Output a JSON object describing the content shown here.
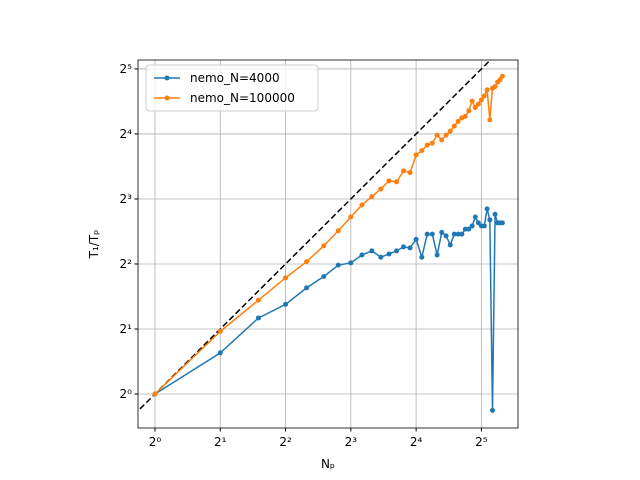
{
  "chart_data": {
    "type": "line",
    "xlabel": "Nₚ",
    "ylabel": "T₁/Tₚ",
    "x": [
      1,
      2,
      3,
      4,
      5,
      6,
      7,
      8,
      9,
      10,
      11,
      12,
      13,
      14,
      15,
      16,
      17,
      18,
      19,
      20,
      21,
      22,
      23,
      24,
      25,
      26,
      27,
      28,
      29,
      30,
      31,
      32,
      33,
      34,
      35,
      36,
      37,
      38,
      39,
      40
    ],
    "series": [
      {
        "name": "nemo_N=4000",
        "color": "#1f77b4",
        "values": [
          1,
          1.55,
          2.25,
          2.6,
          3.1,
          3.5,
          3.95,
          4.05,
          4.4,
          4.6,
          4.3,
          4.45,
          4.6,
          4.8,
          4.75,
          5.2,
          4.3,
          5.5,
          5.5,
          4.4,
          5.6,
          5.4,
          4.9,
          5.5,
          5.5,
          5.5,
          5.8,
          5.8,
          6.0,
          6.6,
          6.2,
          6.0,
          6.0,
          7.2,
          6.4,
          0.84,
          6.8,
          6.2,
          6.2,
          6.2
        ]
      },
      {
        "name": "nemo_N=100000",
        "color": "#ff7f0e",
        "values": [
          1,
          1.95,
          2.72,
          3.45,
          4.1,
          4.85,
          5.7,
          6.6,
          7.5,
          8.2,
          8.9,
          9.7,
          9.6,
          10.8,
          10.6,
          12.8,
          13.4,
          14.2,
          14.5,
          15.8,
          15.0,
          15.8,
          16.5,
          17.4,
          18.3,
          19.0,
          19.3,
          20.5,
          22.7,
          21.2,
          22.0,
          23.0,
          24.0,
          25.6,
          18.6,
          26.0,
          26.5,
          27.8,
          28.5,
          29.6
        ]
      }
    ],
    "log_scale": {
      "x": 2,
      "y": 2
    },
    "xlim": [
      0.835,
      47.2
    ],
    "ylim": [
      0.696,
      35.2
    ],
    "xticks": [
      {
        "value": 1,
        "label": "2⁰"
      },
      {
        "value": 2,
        "label": "2¹"
      },
      {
        "value": 4,
        "label": "2²"
      },
      {
        "value": 8,
        "label": "2³"
      },
      {
        "value": 16,
        "label": "2⁴"
      },
      {
        "value": 32,
        "label": "2⁵"
      }
    ],
    "yticks": [
      {
        "value": 1,
        "label": "2⁰"
      },
      {
        "value": 2,
        "label": "2¹"
      },
      {
        "value": 4,
        "label": "2²"
      },
      {
        "value": 8,
        "label": "2³"
      },
      {
        "value": 16,
        "label": "2⁴"
      },
      {
        "value": 32,
        "label": "2⁵"
      }
    ],
    "grid": true,
    "legend": "upper left",
    "reference_line": "y=x"
  }
}
